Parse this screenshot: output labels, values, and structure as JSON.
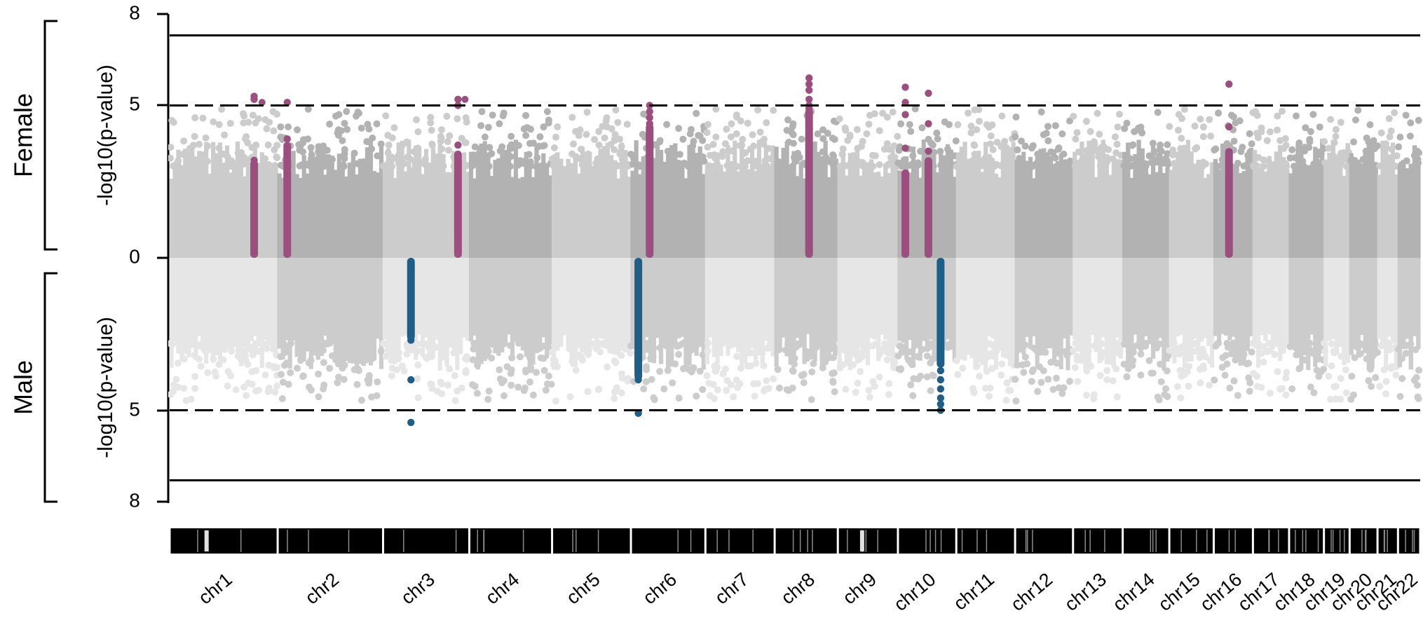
{
  "chart_data": {
    "type": "scatter",
    "subtype": "miami-plot",
    "panels": [
      {
        "name": "Female",
        "ylabel": "-log10(p-value)",
        "direction": "up"
      },
      {
        "name": "Male",
        "ylabel": "-log10(p-value)",
        "direction": "down"
      }
    ],
    "yticks": [
      "8",
      "5",
      "0",
      "5",
      "8"
    ],
    "ylim": [
      0,
      8
    ],
    "thresholds": {
      "suggestive": 5,
      "genome_wide": 7.3
    },
    "chromosomes": [
      {
        "label": "chr1",
        "start": 0,
        "end": 248
      },
      {
        "label": "chr2",
        "start": 248,
        "end": 490
      },
      {
        "label": "chr3",
        "start": 490,
        "end": 688
      },
      {
        "label": "chr4",
        "start": 688,
        "end": 878
      },
      {
        "label": "chr5",
        "start": 878,
        "end": 1059
      },
      {
        "label": "chr6",
        "start": 1059,
        "end": 1230
      },
      {
        "label": "chr7",
        "start": 1230,
        "end": 1389
      },
      {
        "label": "chr8",
        "start": 1389,
        "end": 1534
      },
      {
        "label": "chr9",
        "start": 1534,
        "end": 1672
      },
      {
        "label": "chr10",
        "start": 1672,
        "end": 1806
      },
      {
        "label": "chr11",
        "start": 1806,
        "end": 1941
      },
      {
        "label": "chr12",
        "start": 1941,
        "end": 2074
      },
      {
        "label": "chr13",
        "start": 2074,
        "end": 2188
      },
      {
        "label": "chr14",
        "start": 2188,
        "end": 2295
      },
      {
        "label": "chr15",
        "start": 2295,
        "end": 2397
      },
      {
        "label": "chr16",
        "start": 2397,
        "end": 2487
      },
      {
        "label": "chr17",
        "start": 2487,
        "end": 2570
      },
      {
        "label": "chr18",
        "start": 2570,
        "end": 2650
      },
      {
        "label": "chr19",
        "start": 2650,
        "end": 2709
      },
      {
        "label": "chr20",
        "start": 2709,
        "end": 2773
      },
      {
        "label": "chr21",
        "start": 2773,
        "end": 2820
      },
      {
        "label": "chr22",
        "start": 2820,
        "end": 2871
      }
    ],
    "female_hits": [
      {
        "chr": "chr1",
        "pos": 194,
        "base": 3.2,
        "points": [
          5.2,
          5.3,
          3.2
        ]
      },
      {
        "chr": "chr2",
        "pos": 270,
        "base": 3.8,
        "points": [
          5.1,
          3.9
        ]
      },
      {
        "chr": "chr3",
        "pos": 662,
        "base": 3.5,
        "points": [
          5.2,
          5.0,
          3.7,
          3.4
        ]
      },
      {
        "chr": "chr6",
        "pos": 1102,
        "base": 4.4,
        "points": [
          5.0,
          4.8,
          4.6,
          4.4,
          4.0,
          3.6,
          3.3
        ]
      },
      {
        "chr": "chr8",
        "pos": 1468,
        "base": 4.9,
        "points": [
          5.9,
          5.7,
          5.5,
          5.2,
          5.0,
          4.9,
          4.4,
          3.4
        ]
      },
      {
        "chr": "chr10",
        "pos": 1689,
        "base": 2.9,
        "points": [
          5.6,
          5.1,
          4.7,
          3.6
        ]
      },
      {
        "chr": "chr10",
        "pos": 1742,
        "base": 3.3,
        "points": [
          5.4,
          4.4,
          3.5
        ]
      },
      {
        "chr": "chr16",
        "pos": 2432,
        "base": 3.6,
        "points": [
          5.7,
          4.3
        ]
      }
    ],
    "male_hits": [
      {
        "chr": "chr3",
        "pos": 554,
        "base": 2.7,
        "points": [
          2.5,
          2.7,
          4.0,
          5.4
        ]
      },
      {
        "chr": "chr6",
        "pos": 1076,
        "base": 4.0,
        "points": [
          3.9,
          4.0,
          5.1
        ]
      },
      {
        "chr": "chr10",
        "pos": 1770,
        "base": 3.6,
        "points": [
          3.4,
          3.7,
          4.0,
          4.3,
          4.6,
          4.8,
          5.0
        ]
      }
    ],
    "colors": {
      "female_hit": "#9b4f7f",
      "male_hit": "#1f5f87",
      "female_light": "#cccccc",
      "female_dark": "#b2b2b2",
      "male_light": "#e6e6e6",
      "male_dark": "#cccccc",
      "ideogram": "#000000"
    }
  }
}
